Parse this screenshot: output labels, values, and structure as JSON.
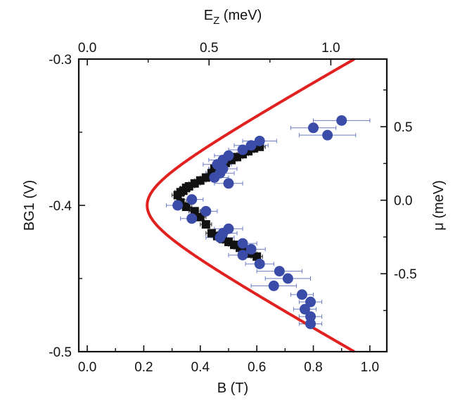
{
  "chart_data": {
    "type": "scatter",
    "title": "",
    "xlabel": "B (T)",
    "ylabel": "BG1 (V)",
    "x2label_main": "E",
    "x2label_sub": "Z",
    "x2label_unit": " (meV)",
    "y2label": "μ (meV)",
    "xlim": [
      -0.03,
      1.06
    ],
    "ylim": [
      -0.5,
      -0.3
    ],
    "x_ticks": [
      {
        "v": 0.0,
        "label": "0.0"
      },
      {
        "v": 0.2,
        "label": "0.2"
      },
      {
        "v": 0.4,
        "label": "0.4"
      },
      {
        "v": 0.6,
        "label": "0.6"
      },
      {
        "v": 0.8,
        "label": "0.8"
      },
      {
        "v": 1.0,
        "label": "1.0"
      }
    ],
    "y_ticks": [
      {
        "v": -0.3,
        "label": "-0.3"
      },
      {
        "v": -0.4,
        "label": "-0.4"
      },
      {
        "v": -0.5,
        "label": "-0.5"
      }
    ],
    "x2_ticks": [
      {
        "v": 0.0,
        "label": "0.0"
      },
      {
        "v": 0.5,
        "label": "0.5"
      },
      {
        "v": 1.0,
        "label": "1.0"
      }
    ],
    "x2lim": [
      -0.035,
      1.23
    ],
    "y2_ticks": [
      {
        "v": 0.5,
        "label": "0.5"
      },
      {
        "v": 0.0,
        "label": "0.0"
      },
      {
        "v": -0.5,
        "label": "-0.5"
      }
    ],
    "y2lim": [
      -1.03,
      0.96
    ],
    "series": [
      {
        "marker": "square",
        "color": "#111111",
        "points": [
          {
            "x": 0.32,
            "y": -0.393,
            "ex": 0.02
          },
          {
            "x": 0.33,
            "y": -0.391,
            "ex": 0.02
          },
          {
            "x": 0.34,
            "y": -0.39,
            "ex": 0.02
          },
          {
            "x": 0.35,
            "y": -0.388,
            "ex": 0.02
          },
          {
            "x": 0.36,
            "y": -0.387,
            "ex": 0.02
          },
          {
            "x": 0.38,
            "y": -0.385,
            "ex": 0.02
          },
          {
            "x": 0.4,
            "y": -0.383,
            "ex": 0.02
          },
          {
            "x": 0.42,
            "y": -0.381,
            "ex": 0.02
          },
          {
            "x": 0.44,
            "y": -0.378,
            "ex": 0.02
          },
          {
            "x": 0.45,
            "y": -0.375,
            "ex": 0.02
          },
          {
            "x": 0.47,
            "y": -0.373,
            "ex": 0.02
          },
          {
            "x": 0.49,
            "y": -0.371,
            "ex": 0.02
          },
          {
            "x": 0.51,
            "y": -0.369,
            "ex": 0.02
          },
          {
            "x": 0.53,
            "y": -0.367,
            "ex": 0.02
          },
          {
            "x": 0.55,
            "y": -0.365,
            "ex": 0.02
          },
          {
            "x": 0.57,
            "y": -0.363,
            "ex": 0.02
          },
          {
            "x": 0.59,
            "y": -0.361,
            "ex": 0.02
          },
          {
            "x": 0.61,
            "y": -0.36,
            "ex": 0.02
          },
          {
            "x": 0.33,
            "y": -0.398,
            "ex": 0.02
          },
          {
            "x": 0.35,
            "y": -0.401,
            "ex": 0.02
          },
          {
            "x": 0.38,
            "y": -0.404,
            "ex": 0.02
          },
          {
            "x": 0.4,
            "y": -0.408,
            "ex": 0.02
          },
          {
            "x": 0.42,
            "y": -0.413,
            "ex": 0.02
          },
          {
            "x": 0.44,
            "y": -0.419,
            "ex": 0.02
          },
          {
            "x": 0.46,
            "y": -0.421,
            "ex": 0.02
          },
          {
            "x": 0.48,
            "y": -0.423,
            "ex": 0.02
          },
          {
            "x": 0.5,
            "y": -0.425,
            "ex": 0.02
          },
          {
            "x": 0.52,
            "y": -0.427,
            "ex": 0.02
          },
          {
            "x": 0.54,
            "y": -0.429,
            "ex": 0.02
          },
          {
            "x": 0.56,
            "y": -0.431,
            "ex": 0.02
          },
          {
            "x": 0.58,
            "y": -0.433,
            "ex": 0.02
          },
          {
            "x": 0.6,
            "y": -0.435,
            "ex": 0.02
          }
        ]
      },
      {
        "marker": "circle",
        "color": "#3a4ca8",
        "points": [
          {
            "x": 0.9,
            "y": -0.342,
            "ex": 0.1
          },
          {
            "x": 0.8,
            "y": -0.347,
            "ex": 0.08
          },
          {
            "x": 0.85,
            "y": -0.352,
            "ex": 0.1
          },
          {
            "x": 0.61,
            "y": -0.356,
            "ex": 0.06
          },
          {
            "x": 0.58,
            "y": -0.359,
            "ex": 0.06
          },
          {
            "x": 0.55,
            "y": -0.362,
            "ex": 0.05
          },
          {
            "x": 0.5,
            "y": -0.366,
            "ex": 0.05
          },
          {
            "x": 0.48,
            "y": -0.369,
            "ex": 0.05
          },
          {
            "x": 0.46,
            "y": -0.372,
            "ex": 0.05
          },
          {
            "x": 0.48,
            "y": -0.375,
            "ex": 0.05
          },
          {
            "x": 0.47,
            "y": -0.378,
            "ex": 0.05
          },
          {
            "x": 0.45,
            "y": -0.381,
            "ex": 0.05
          },
          {
            "x": 0.5,
            "y": -0.385,
            "ex": 0.05
          },
          {
            "x": 0.37,
            "y": -0.396,
            "ex": 0.04
          },
          {
            "x": 0.32,
            "y": -0.4,
            "ex": 0.04
          },
          {
            "x": 0.42,
            "y": -0.404,
            "ex": 0.04
          },
          {
            "x": 0.37,
            "y": -0.409,
            "ex": 0.04
          },
          {
            "x": 0.5,
            "y": -0.416,
            "ex": 0.05
          },
          {
            "x": 0.48,
            "y": -0.419,
            "ex": 0.05
          },
          {
            "x": 0.47,
            "y": -0.422,
            "ex": 0.05
          },
          {
            "x": 0.55,
            "y": -0.426,
            "ex": 0.05
          },
          {
            "x": 0.58,
            "y": -0.43,
            "ex": 0.05
          },
          {
            "x": 0.55,
            "y": -0.434,
            "ex": 0.05
          },
          {
            "x": 0.61,
            "y": -0.44,
            "ex": 0.05
          },
          {
            "x": 0.68,
            "y": -0.445,
            "ex": 0.08
          },
          {
            "x": 0.71,
            "y": -0.45,
            "ex": 0.08
          },
          {
            "x": 0.66,
            "y": -0.455,
            "ex": 0.08
          },
          {
            "x": 0.76,
            "y": -0.461,
            "ex": 0.04
          },
          {
            "x": 0.79,
            "y": -0.466,
            "ex": 0.04
          },
          {
            "x": 0.77,
            "y": -0.471,
            "ex": 0.04
          },
          {
            "x": 0.79,
            "y": -0.476,
            "ex": 0.04
          },
          {
            "x": 0.79,
            "y": -0.481,
            "ex": 0.04
          }
        ]
      }
    ],
    "curve": {
      "color": "#e0211f",
      "vertex_x": 0.212,
      "center_y": -0.4,
      "points": [
        {
          "x": 0.945,
          "y": -0.3
        },
        {
          "x": 0.75,
          "y": -0.325
        },
        {
          "x": 0.55,
          "y": -0.351
        },
        {
          "x": 0.4,
          "y": -0.37
        },
        {
          "x": 0.3,
          "y": -0.384
        },
        {
          "x": 0.24,
          "y": -0.393
        },
        {
          "x": 0.212,
          "y": -0.4
        },
        {
          "x": 0.24,
          "y": -0.407
        },
        {
          "x": 0.3,
          "y": -0.417
        },
        {
          "x": 0.4,
          "y": -0.428
        },
        {
          "x": 0.55,
          "y": -0.447
        },
        {
          "x": 0.75,
          "y": -0.471
        },
        {
          "x": 0.925,
          "y": -0.5
        }
      ]
    }
  }
}
